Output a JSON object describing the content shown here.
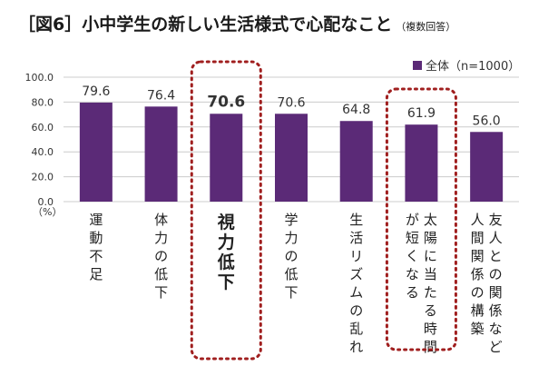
{
  "title": {
    "main": "［図6］小中学生の新しい生活様式で心配なこと",
    "note": "（複数回答）"
  },
  "chart_data": {
    "type": "bar",
    "categories": [
      [
        "運動不足"
      ],
      [
        "体力の低下"
      ],
      [
        "視力低下"
      ],
      [
        "学力の低下"
      ],
      [
        "生活リズムの乱れ"
      ],
      [
        "太陽に当たる時間",
        "が短くなる"
      ],
      [
        "友人との関係など",
        "人間関係の構築"
      ]
    ],
    "series": [
      {
        "name": "全体（n=1000）",
        "values": [
          79.6,
          76.4,
          70.6,
          70.6,
          64.8,
          61.9,
          56.0
        ],
        "labels": [
          "79.6",
          "76.4",
          "70.6",
          "70.6",
          "64.8",
          "61.9",
          "56.0"
        ]
      }
    ],
    "ylim": [
      0,
      100
    ],
    "yticks": [
      "0.0",
      "20.0",
      "40.0",
      "60.0",
      "80.0",
      "100.0"
    ],
    "y_unit": "（%）",
    "highlighted": [
      2,
      5
    ],
    "legend": "top-right",
    "colors": {
      "bar": "#5b2a77",
      "highlight_border": "#a01f1f",
      "axis": "#cccccc"
    }
  }
}
